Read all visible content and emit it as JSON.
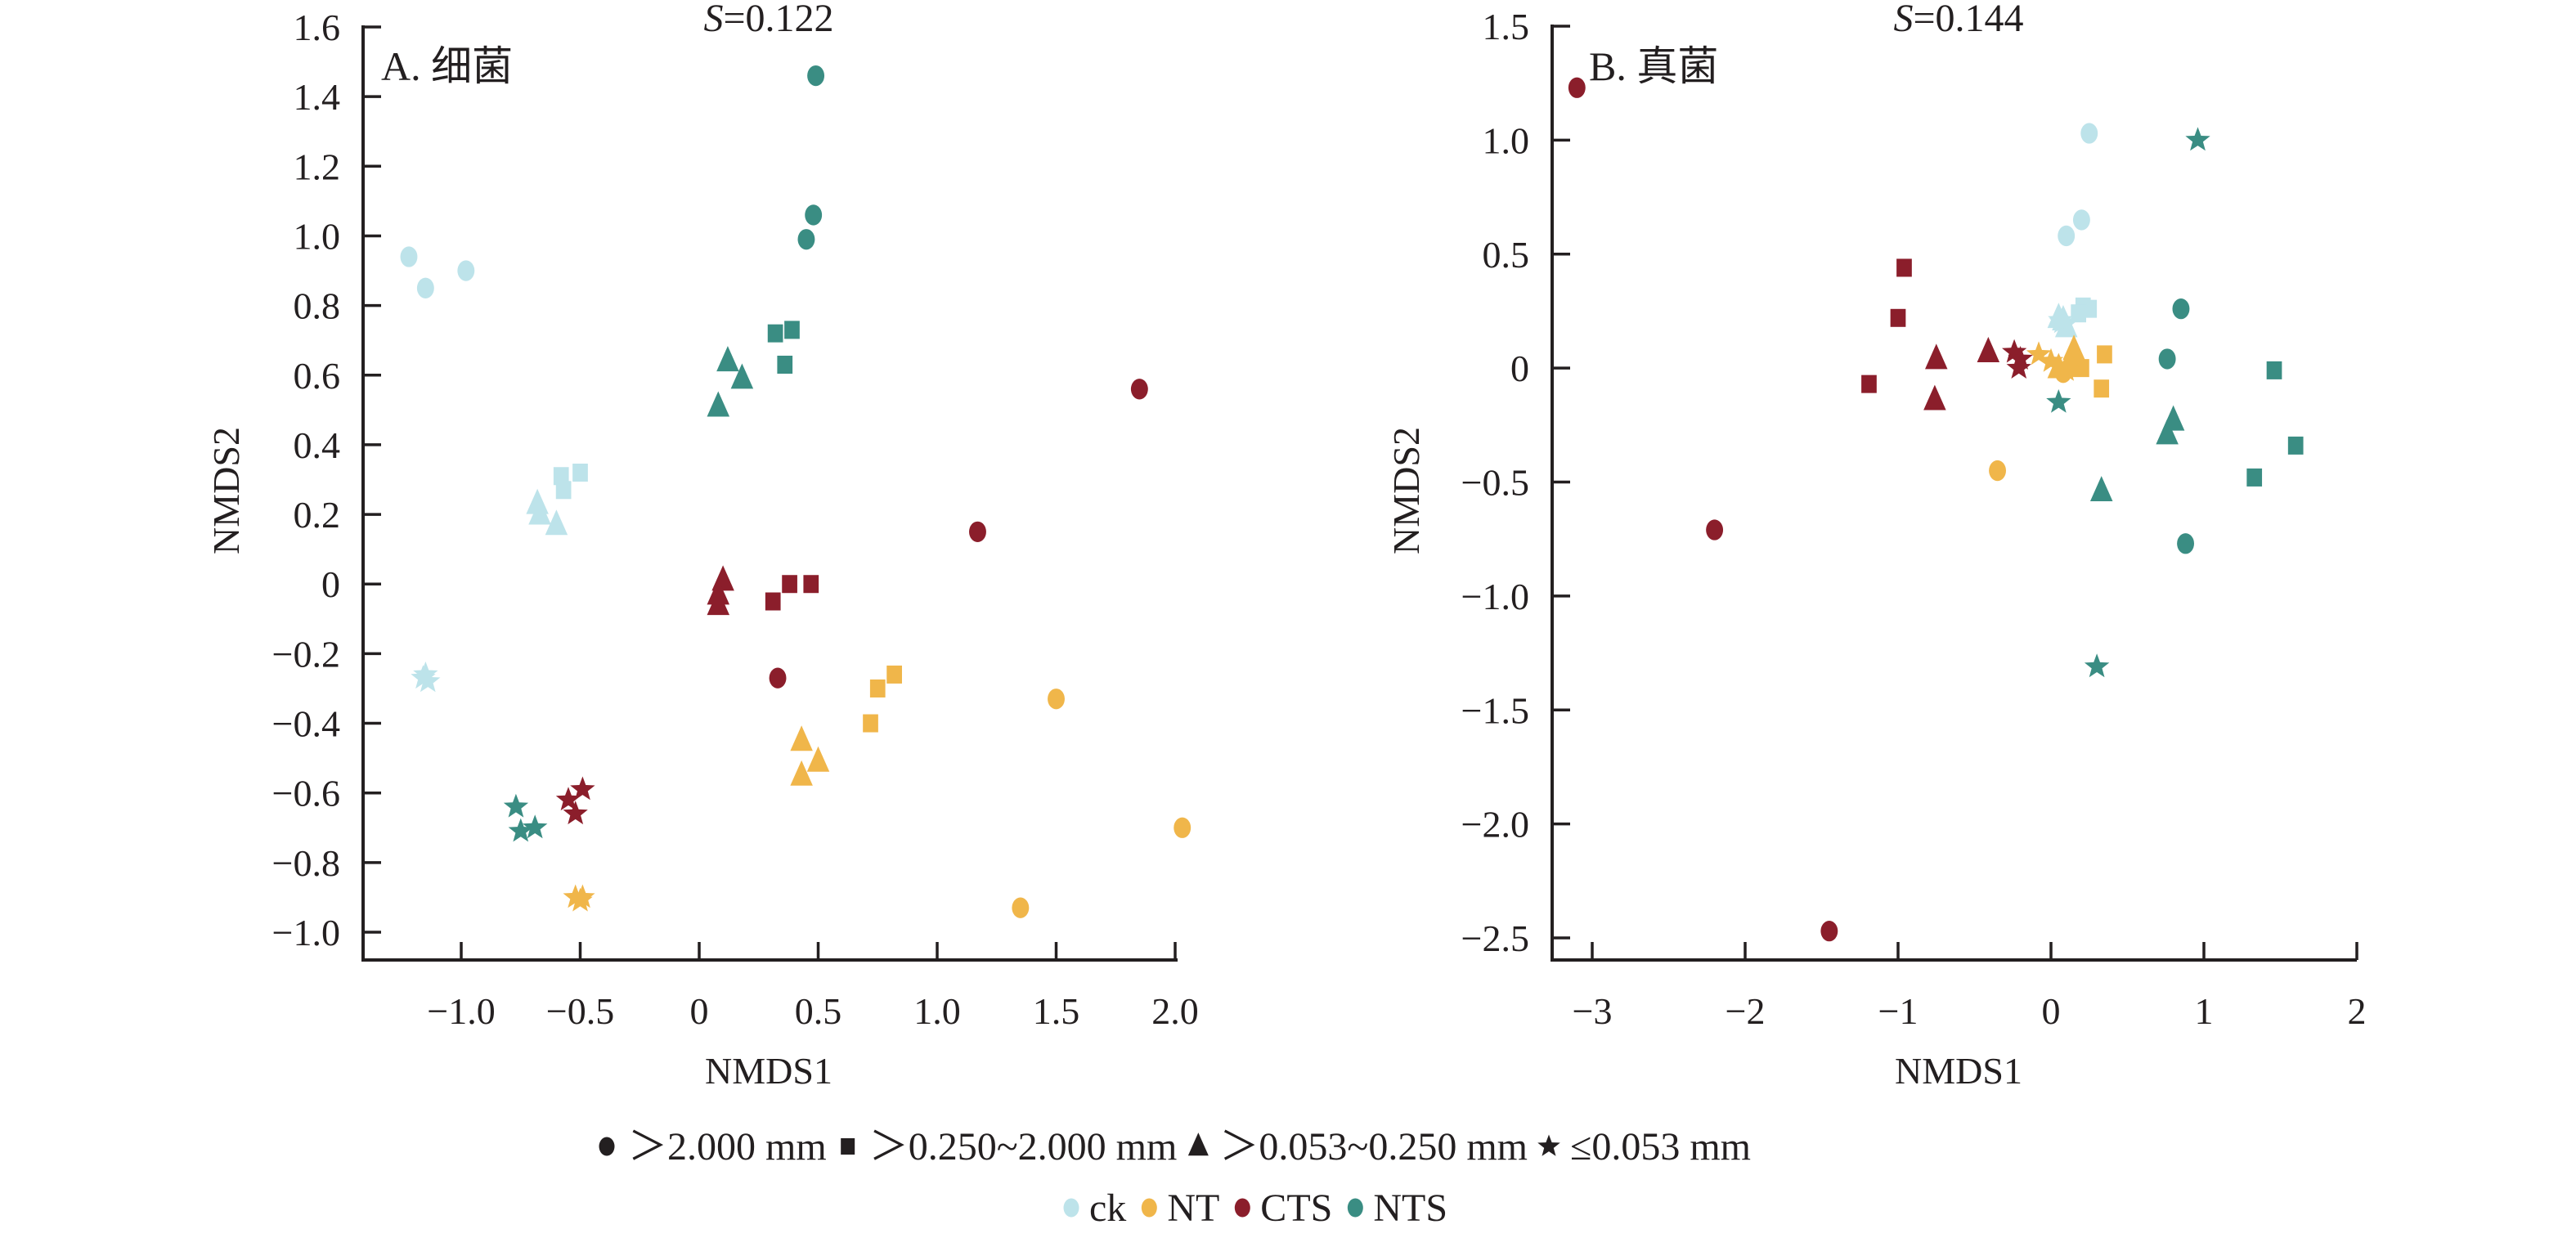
{
  "chart_data": [
    {
      "type": "scatter",
      "panel_label": "A. 细菌",
      "stress_label_italic": "S",
      "stress_label_rest": "=0.122",
      "xlabel": "NMDS1",
      "ylabel": "NMDS2",
      "xlim": [
        -1.4,
        2.0
      ],
      "ylim": [
        -1.08,
        1.6
      ],
      "xticks": [
        -1.0,
        -0.5,
        0,
        0.5,
        1.0,
        1.5,
        2.0
      ],
      "xtick_labels": [
        "−1.0",
        "−0.5",
        "0",
        "0.5",
        "1.0",
        "1.5",
        "2.0"
      ],
      "yticks": [
        1.6,
        1.4,
        1.2,
        1.0,
        0.8,
        0.6,
        0.4,
        0.2,
        0,
        -0.2,
        -0.4,
        -0.6,
        -0.8,
        -1.0
      ],
      "ytick_labels": [
        "1.6",
        "1.4",
        "1.2",
        "1.0",
        "0.8",
        "0.6",
        "0.4",
        "0.2",
        "0",
        "−0.2",
        "−0.4",
        "−0.6",
        "−0.8",
        "−1.0"
      ],
      "grid": false,
      "series": [
        {
          "name": "ck",
          "points": [
            {
              "shape": "circle",
              "x": -1.22,
              "y": 0.94
            },
            {
              "shape": "circle",
              "x": -1.15,
              "y": 0.85
            },
            {
              "shape": "circle",
              "x": -0.98,
              "y": 0.9
            },
            {
              "shape": "square",
              "x": -0.58,
              "y": 0.31
            },
            {
              "shape": "square",
              "x": -0.5,
              "y": 0.32
            },
            {
              "shape": "square",
              "x": -0.57,
              "y": 0.27
            },
            {
              "shape": "triangle",
              "x": -0.68,
              "y": 0.23
            },
            {
              "shape": "triangle",
              "x": -0.67,
              "y": 0.2
            },
            {
              "shape": "triangle",
              "x": -0.6,
              "y": 0.17
            },
            {
              "shape": "star",
              "x": -1.15,
              "y": -0.26
            },
            {
              "shape": "star",
              "x": -1.14,
              "y": -0.28
            },
            {
              "shape": "star",
              "x": -1.16,
              "y": -0.27
            }
          ]
        },
        {
          "name": "NT",
          "points": [
            {
              "shape": "circle",
              "x": 1.5,
              "y": -0.33
            },
            {
              "shape": "circle",
              "x": 2.03,
              "y": -0.7
            },
            {
              "shape": "circle",
              "x": 1.35,
              "y": -0.93
            },
            {
              "shape": "square",
              "x": 0.72,
              "y": -0.4
            },
            {
              "shape": "square",
              "x": 0.75,
              "y": -0.3
            },
            {
              "shape": "square",
              "x": 0.82,
              "y": -0.26
            },
            {
              "shape": "triangle",
              "x": 0.43,
              "y": -0.45
            },
            {
              "shape": "triangle",
              "x": 0.5,
              "y": -0.51
            },
            {
              "shape": "triangle",
              "x": 0.43,
              "y": -0.55
            },
            {
              "shape": "star",
              "x": -0.52,
              "y": -0.9
            },
            {
              "shape": "star",
              "x": -0.5,
              "y": -0.91
            },
            {
              "shape": "star",
              "x": -0.49,
              "y": -0.9
            }
          ]
        },
        {
          "name": "CTS",
          "points": [
            {
              "shape": "circle",
              "x": 1.85,
              "y": 0.56
            },
            {
              "shape": "circle",
              "x": 1.17,
              "y": 0.15
            },
            {
              "shape": "circle",
              "x": 0.33,
              "y": -0.27
            },
            {
              "shape": "square",
              "x": 0.38,
              "y": 0.0
            },
            {
              "shape": "square",
              "x": 0.47,
              "y": 0.0
            },
            {
              "shape": "square",
              "x": 0.31,
              "y": -0.05
            },
            {
              "shape": "triangle",
              "x": 0.1,
              "y": 0.01
            },
            {
              "shape": "triangle",
              "x": 0.08,
              "y": -0.03
            },
            {
              "shape": "triangle",
              "x": 0.08,
              "y": -0.06
            },
            {
              "shape": "star",
              "x": -0.49,
              "y": -0.59
            },
            {
              "shape": "star",
              "x": -0.55,
              "y": -0.62
            },
            {
              "shape": "star",
              "x": -0.52,
              "y": -0.66
            }
          ]
        },
        {
          "name": "NTS",
          "points": [
            {
              "shape": "circle",
              "x": 0.49,
              "y": 1.46
            },
            {
              "shape": "circle",
              "x": 0.48,
              "y": 1.06
            },
            {
              "shape": "circle",
              "x": 0.45,
              "y": 0.99
            },
            {
              "shape": "square",
              "x": 0.32,
              "y": 0.72
            },
            {
              "shape": "square",
              "x": 0.39,
              "y": 0.73
            },
            {
              "shape": "square",
              "x": 0.36,
              "y": 0.63
            },
            {
              "shape": "triangle",
              "x": 0.12,
              "y": 0.64
            },
            {
              "shape": "triangle",
              "x": 0.18,
              "y": 0.59
            },
            {
              "shape": "triangle",
              "x": 0.08,
              "y": 0.51
            },
            {
              "shape": "star",
              "x": -0.77,
              "y": -0.64
            },
            {
              "shape": "star",
              "x": -0.75,
              "y": -0.71
            },
            {
              "shape": "star",
              "x": -0.69,
              "y": -0.7
            }
          ]
        }
      ]
    },
    {
      "type": "scatter",
      "panel_label": "B. 真菌",
      "stress_label_italic": "S",
      "stress_label_rest": "=0.144",
      "xlabel": "NMDS1",
      "ylabel": "NMDS2",
      "xlim": [
        -3.26,
        2.0
      ],
      "ylim": [
        -2.6,
        1.5
      ],
      "xticks": [
        -3,
        -2,
        -1,
        0,
        1,
        2
      ],
      "xtick_labels": [
        "−3",
        "−2",
        "−1",
        "0",
        "1",
        "2"
      ],
      "yticks": [
        1.5,
        1.0,
        0.5,
        0,
        -0.5,
        -1.0,
        -1.5,
        -2.0,
        -2.5
      ],
      "ytick_labels": [
        "1.5",
        "1.0",
        "0.5",
        "0",
        "−0.5",
        "−1.0",
        "−1.5",
        "−2.0",
        "−2.5"
      ],
      "grid": false,
      "series": [
        {
          "name": "ck",
          "points": [
            {
              "shape": "circle",
              "x": 0.25,
              "y": 1.03
            },
            {
              "shape": "circle",
              "x": 0.2,
              "y": 0.65
            },
            {
              "shape": "circle",
              "x": 0.1,
              "y": 0.58
            },
            {
              "shape": "square",
              "x": 0.21,
              "y": 0.27
            },
            {
              "shape": "square",
              "x": 0.25,
              "y": 0.26
            },
            {
              "shape": "square",
              "x": 0.18,
              "y": 0.24
            },
            {
              "shape": "triangle",
              "x": 0.08,
              "y": 0.21
            },
            {
              "shape": "triangle",
              "x": 0.1,
              "y": 0.18
            },
            {
              "shape": "triangle",
              "x": 0.05,
              "y": 0.22
            },
            {
              "shape": "star",
              "x": 0.07,
              "y": 0.2
            },
            {
              "shape": "star",
              "x": 0.09,
              "y": 0.19
            },
            {
              "shape": "star",
              "x": 0.06,
              "y": 0.21
            }
          ]
        },
        {
          "name": "NT",
          "points": [
            {
              "shape": "circle",
              "x": -0.35,
              "y": -0.45
            },
            {
              "shape": "circle",
              "x": 0.12,
              "y": 0.0
            },
            {
              "shape": "circle",
              "x": 0.08,
              "y": -0.02
            },
            {
              "shape": "square",
              "x": 0.35,
              "y": 0.06
            },
            {
              "shape": "square",
              "x": 0.33,
              "y": -0.09
            },
            {
              "shape": "square",
              "x": 0.2,
              "y": 0.0
            },
            {
              "shape": "triangle",
              "x": 0.15,
              "y": 0.08
            },
            {
              "shape": "triangle",
              "x": 0.12,
              "y": 0.02
            },
            {
              "shape": "triangle",
              "x": 0.05,
              "y": 0.0
            },
            {
              "shape": "star",
              "x": -0.08,
              "y": 0.06
            },
            {
              "shape": "star",
              "x": 0.0,
              "y": 0.03
            },
            {
              "shape": "star",
              "x": 0.1,
              "y": -0.01
            }
          ]
        },
        {
          "name": "CTS",
          "points": [
            {
              "shape": "circle",
              "x": -3.1,
              "y": 1.23
            },
            {
              "shape": "circle",
              "x": -2.2,
              "y": -0.71
            },
            {
              "shape": "circle",
              "x": -1.45,
              "y": -2.47
            },
            {
              "shape": "square",
              "x": -0.96,
              "y": 0.44
            },
            {
              "shape": "square",
              "x": -1.0,
              "y": 0.22
            },
            {
              "shape": "square",
              "x": -1.19,
              "y": -0.07
            },
            {
              "shape": "triangle",
              "x": -0.75,
              "y": 0.04
            },
            {
              "shape": "triangle",
              "x": -0.76,
              "y": -0.14
            },
            {
              "shape": "triangle",
              "x": -0.41,
              "y": 0.07
            },
            {
              "shape": "star",
              "x": -0.24,
              "y": 0.07
            },
            {
              "shape": "star",
              "x": -0.21,
              "y": 0.0
            },
            {
              "shape": "star",
              "x": -0.2,
              "y": 0.04
            }
          ]
        },
        {
          "name": "NTS",
          "points": [
            {
              "shape": "circle",
              "x": 0.85,
              "y": 0.26
            },
            {
              "shape": "circle",
              "x": 0.76,
              "y": 0.04
            },
            {
              "shape": "circle",
              "x": 0.88,
              "y": -0.77
            },
            {
              "shape": "square",
              "x": 1.46,
              "y": -0.01
            },
            {
              "shape": "square",
              "x": 1.6,
              "y": -0.34
            },
            {
              "shape": "square",
              "x": 1.33,
              "y": -0.48
            },
            {
              "shape": "triangle",
              "x": 0.8,
              "y": -0.23
            },
            {
              "shape": "triangle",
              "x": 0.76,
              "y": -0.29
            },
            {
              "shape": "triangle",
              "x": 0.33,
              "y": -0.54
            },
            {
              "shape": "star",
              "x": 0.96,
              "y": 1.0
            },
            {
              "shape": "star",
              "x": 0.05,
              "y": -0.15
            },
            {
              "shape": "star",
              "x": 0.3,
              "y": -1.31
            }
          ]
        }
      ]
    }
  ],
  "group_colors": {
    "ck": "#bde3ea",
    "NT": "#f0b64a",
    "CTS": "#8b1e2b",
    "NTS": "#3a8d83"
  },
  "legend": {
    "shapes": [
      {
        "shape": "circle",
        "label": "＞2.000 mm"
      },
      {
        "shape": "square",
        "label": "＞0.250~2.000 mm"
      },
      {
        "shape": "triangle",
        "label": "＞0.053~0.250 mm"
      },
      {
        "shape": "star",
        "label": "≤0.053 mm"
      }
    ],
    "groups": [
      {
        "name": "ck",
        "label": "ck"
      },
      {
        "name": "NT",
        "label": "NT"
      },
      {
        "name": "CTS",
        "label": "CTS"
      },
      {
        "name": "NTS",
        "label": "NTS"
      }
    ],
    "shape_color": "#231f20",
    "placement": "bottom-center"
  }
}
